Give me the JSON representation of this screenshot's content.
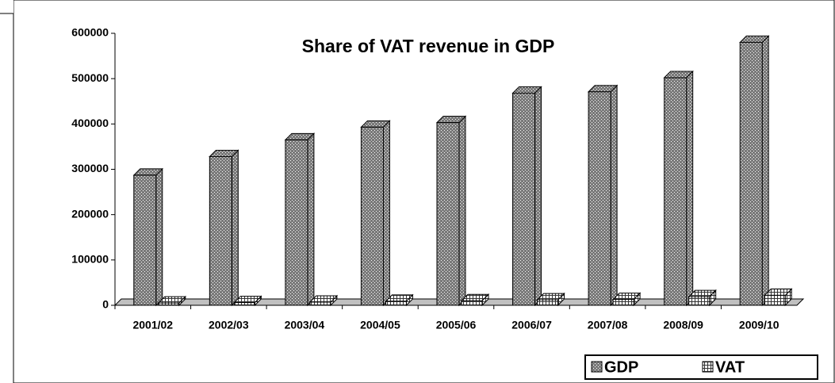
{
  "chart_data": {
    "type": "bar3d",
    "title": "Share of VAT revenue in GDP",
    "categories": [
      "2001/02",
      "2002/03",
      "2003/04",
      "2004/05",
      "2005/06",
      "2006/07",
      "2007/08",
      "2008/09",
      "2009/10"
    ],
    "series": [
      {
        "name": "GDP",
        "color": "#7a7a7a",
        "values": [
          287000,
          328000,
          365000,
          393000,
          403000,
          468000,
          471000,
          502000,
          580000
        ]
      },
      {
        "name": "VAT",
        "color": "#b0b0b0",
        "values": [
          5000,
          6000,
          7000,
          9000,
          10000,
          12000,
          13000,
          19000,
          22000
        ]
      }
    ],
    "ylim": [
      0,
      600000
    ],
    "yticks": [
      0,
      100000,
      200000,
      300000,
      400000,
      500000,
      600000
    ],
    "grid": false,
    "legend": "bottom-right"
  }
}
